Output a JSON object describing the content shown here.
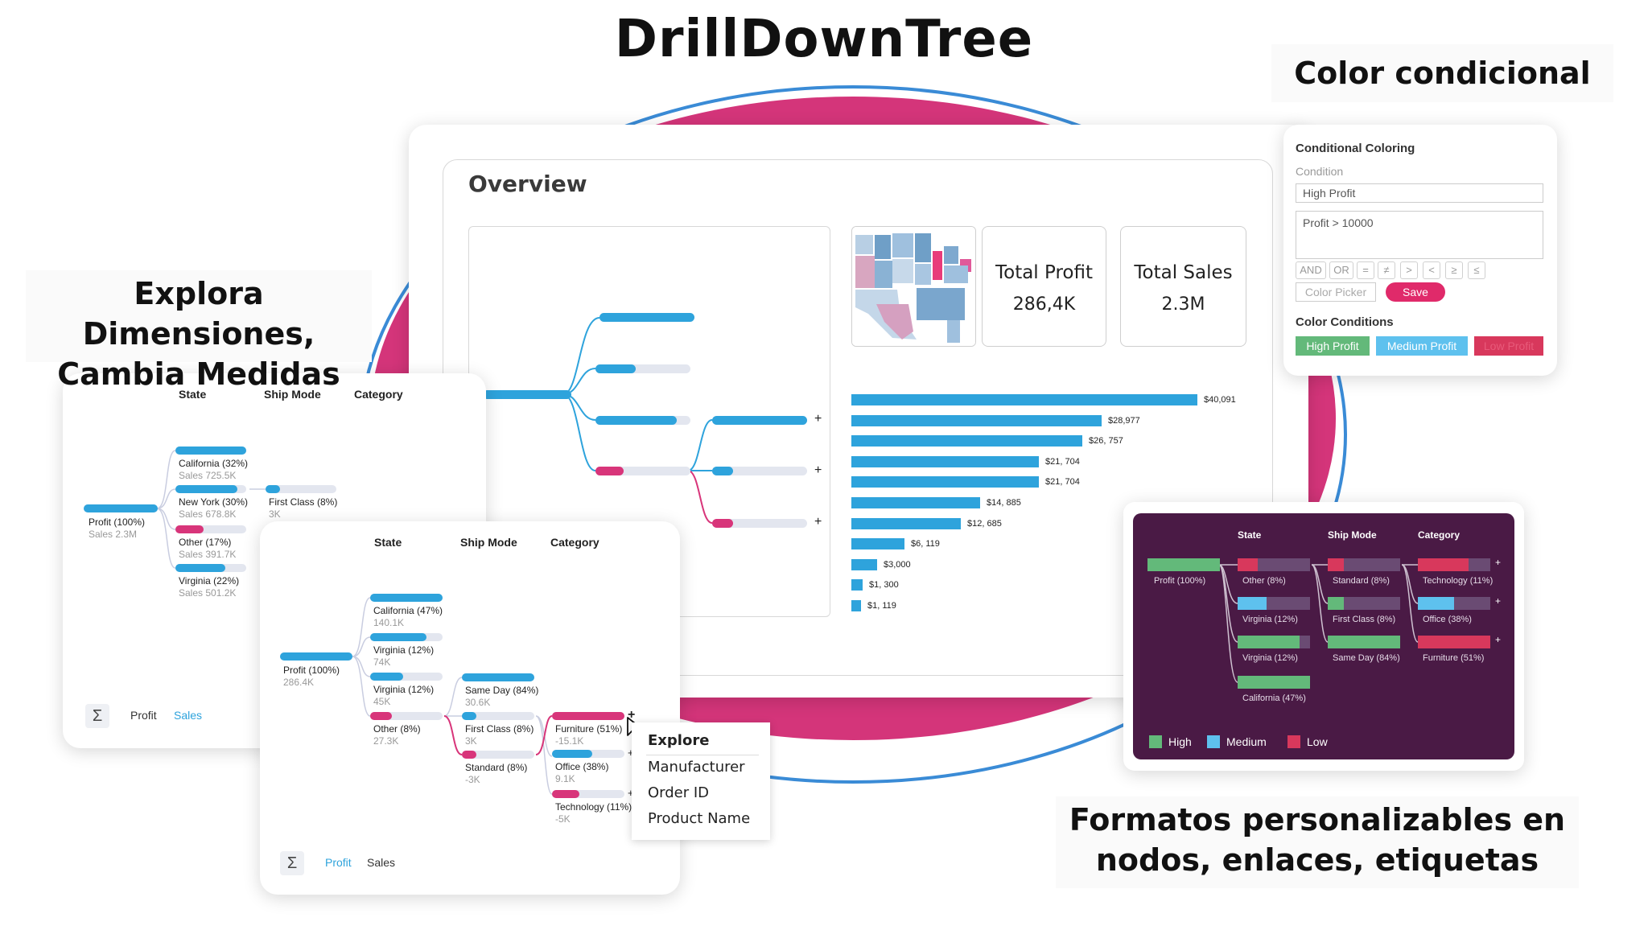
{
  "title": "DrillDownTree",
  "headings": {
    "conditional": "Color condicional",
    "explore": "Explora Dimensiones, Cambia Medidas",
    "explore_line1": "Explora Dimensiones,",
    "explore_line2": "Cambia Medidas",
    "formats_line1": "Formatos personalizables en",
    "formats_line2": "nodos, enlaces, etiquetas"
  },
  "overview": {
    "title": "Overview",
    "kpis": [
      {
        "title": "Total Profit",
        "value": "286,4K"
      },
      {
        "title": "Total Sales",
        "value": "2.3M"
      }
    ],
    "bar_labels": [
      "$40,091",
      "$28,977",
      "$26, 757",
      "$21, 704",
      "$21, 704",
      "$14, 885",
      "$12, 685",
      "$6, 119",
      "$3,000",
      "$1, 300",
      "$1, 119"
    ],
    "expand_symbol": "+"
  },
  "chart_data": {
    "type": "bar",
    "orientation": "horizontal",
    "values": [
      40091,
      28977,
      26757,
      21704,
      21704,
      14885,
      12685,
      6119,
      3000,
      1300,
      1119
    ]
  },
  "conditional_panel": {
    "title": "Conditional Coloring",
    "condition_label": "Condition",
    "condition_name": "High Profit",
    "condition_expr": "Profit > 10000",
    "operators": [
      "AND",
      "OR",
      "=",
      "≠",
      ">",
      "<",
      "≥",
      "≤"
    ],
    "color_picker": "Color Picker",
    "save": "Save",
    "conditions_title": "Color Conditions",
    "chips": [
      {
        "label": "High Profit",
        "bg": "#63b97a",
        "fg": "#ffffff"
      },
      {
        "label": "Medium Profit",
        "bg": "#5ec1ee",
        "fg": "#ffffff"
      },
      {
        "label": "Low Profit",
        "bg": "#d8385c",
        "fg": "#e85a7a"
      }
    ]
  },
  "tree1": {
    "columns": [
      "State",
      "Ship Mode",
      "Category"
    ],
    "root": {
      "label": "Profit (100%)",
      "sub": "Sales 2.3M"
    },
    "states": [
      {
        "label": "California (32%)",
        "sub": "Sales 725.5K"
      },
      {
        "label": "New York (30%)",
        "sub": "Sales 678.8K"
      },
      {
        "label": "Other (17%)",
        "sub": "Sales 391.7K"
      },
      {
        "label": "Virginia  (22%)",
        "sub": "Sales 501.2K"
      }
    ],
    "ship": {
      "label": "First Class (8%)",
      "sub": "3K"
    },
    "footer": {
      "sigma": "Σ",
      "profit": "Profit",
      "sales": "Sales"
    }
  },
  "tree2": {
    "columns": [
      "State",
      "Ship Mode",
      "Category"
    ],
    "root": {
      "label": "Profit (100%)",
      "sub": "286.4K"
    },
    "states": [
      {
        "label": "California (47%)",
        "sub": "140.1K"
      },
      {
        "label": "Virginia  (12%)",
        "sub": "74K"
      },
      {
        "label": "Virginia  (12%)",
        "sub": "45K"
      },
      {
        "label": "Other (8%)",
        "sub": "27.3K"
      }
    ],
    "ship": [
      {
        "label": "Same Day (84%)",
        "sub": "30.6K"
      },
      {
        "label": "First Class (8%)",
        "sub": "3K"
      },
      {
        "label": "Standard (8%)",
        "sub": "-3K"
      }
    ],
    "category": [
      {
        "label": "Furniture (51%)",
        "sub": "-15.1K"
      },
      {
        "label": "Office (38%)",
        "sub": "9.1K"
      },
      {
        "label": "Technology (11%)",
        "sub": "-5K"
      }
    ],
    "footer": {
      "sigma": "Σ",
      "profit": "Profit",
      "sales": "Sales"
    }
  },
  "context_menu": {
    "title": "Explore",
    "items": [
      "Manufacturer",
      "Order ID",
      "Product Name"
    ]
  },
  "dark_tree": {
    "columns": [
      "State",
      "Ship Mode",
      "Category"
    ],
    "root": "Profit (100%)",
    "states": [
      "Other (8%)",
      "Virginia  (12%)",
      "Virginia  (12%)",
      "California (47%)"
    ],
    "ship": [
      "Standard (8%)",
      "First Class (8%)",
      "Same Day (84%)"
    ],
    "category": [
      "Technology (11%)",
      "Office (38%)",
      "Furniture (51%)"
    ],
    "legend": [
      "High",
      "Medium",
      "Low"
    ]
  }
}
